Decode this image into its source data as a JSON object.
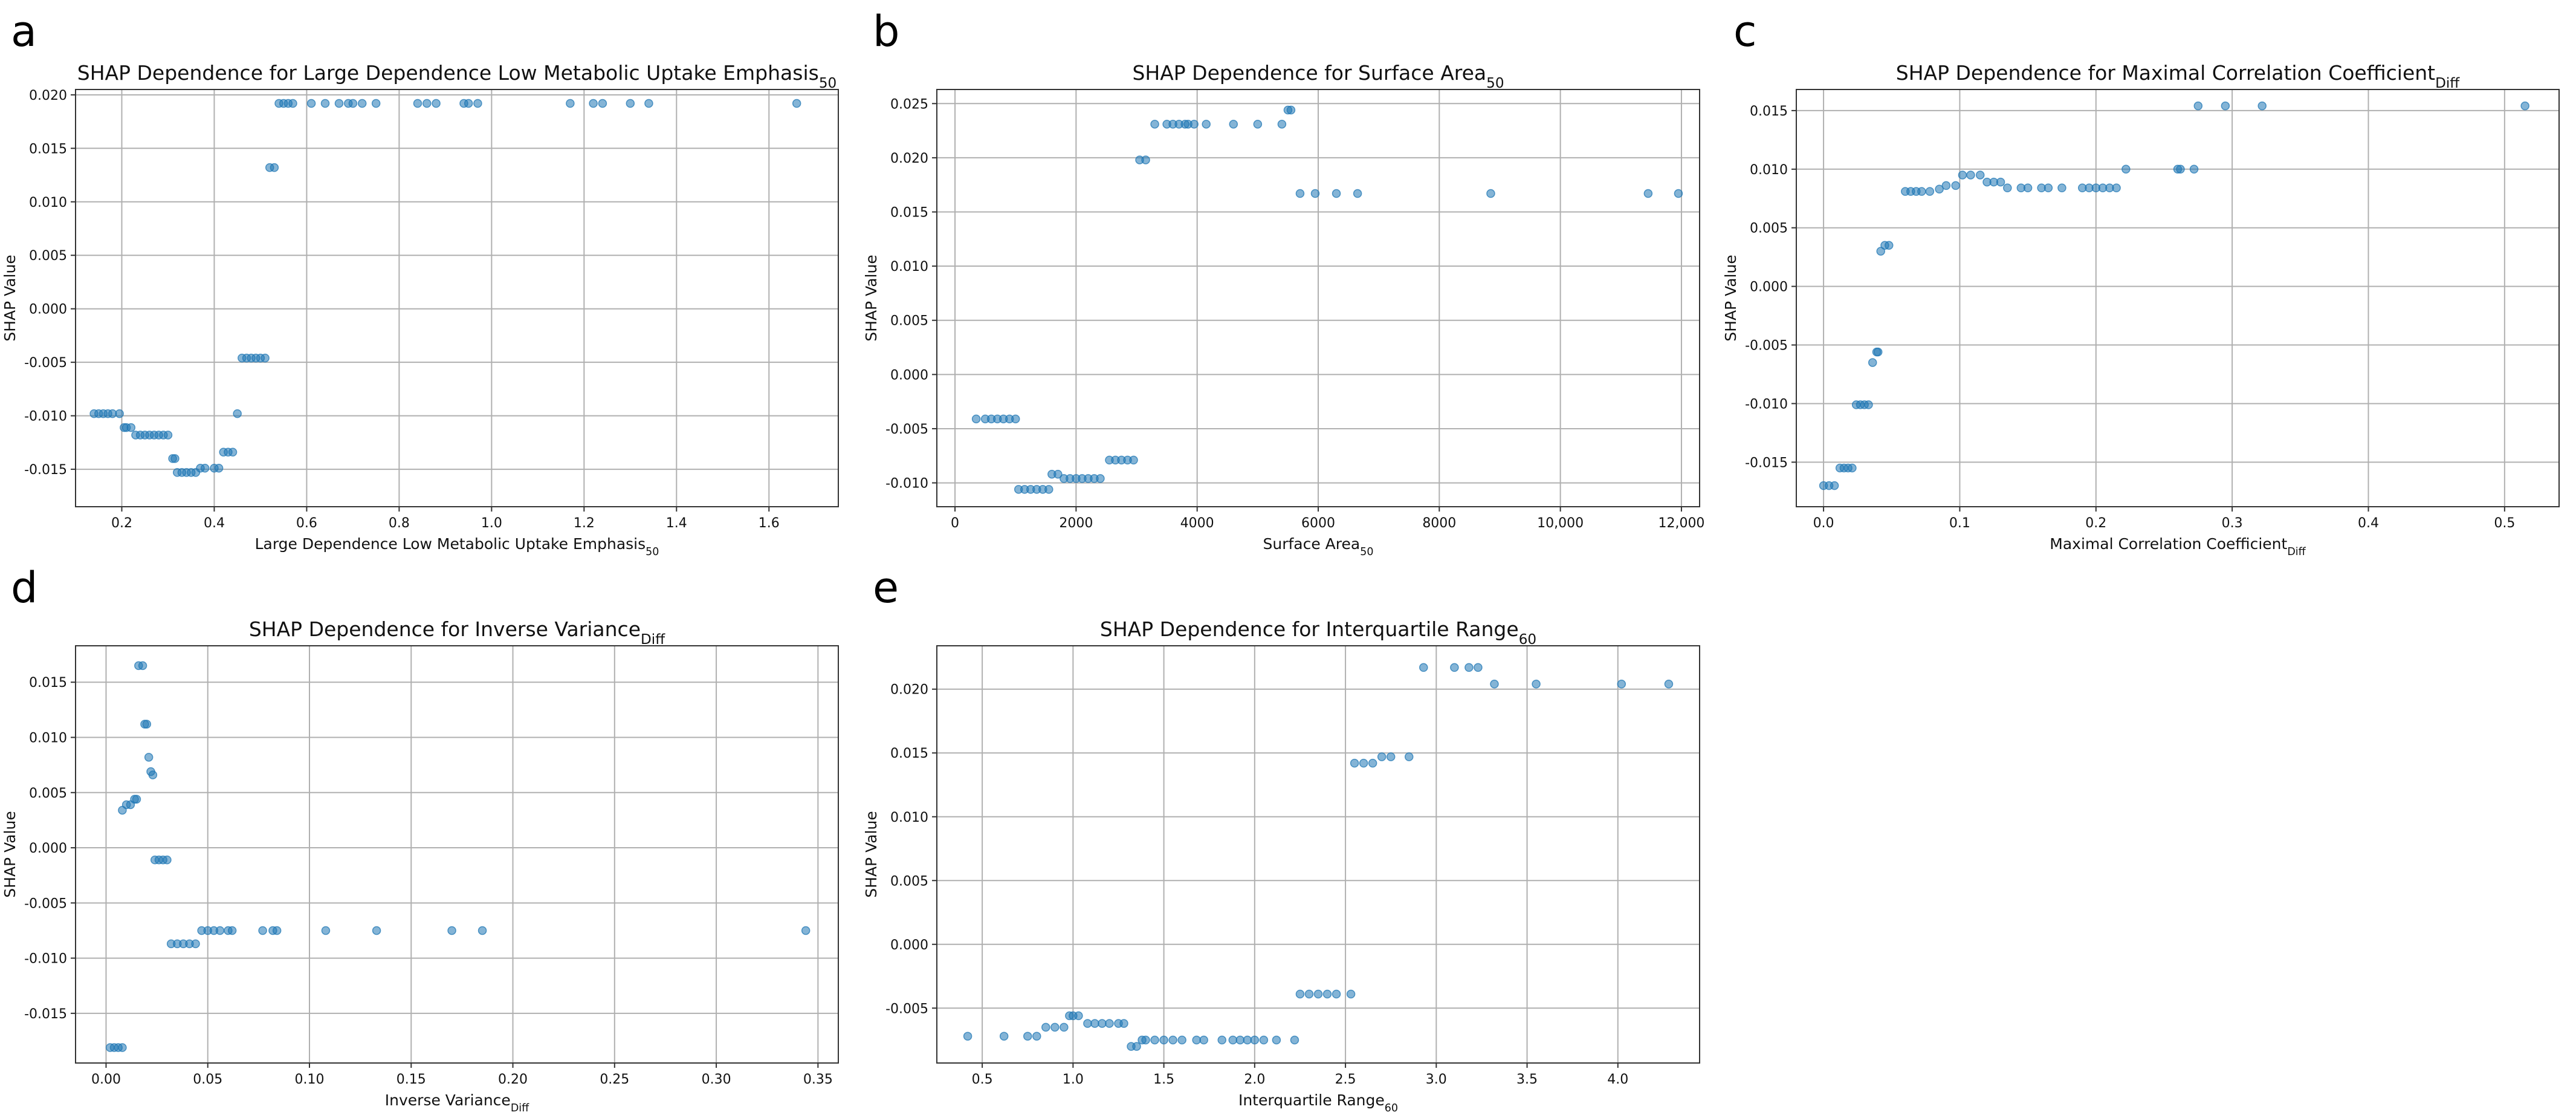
{
  "chart_data": [
    {
      "type": "scatter",
      "panel_letter": "a",
      "title": "SHAP Dependence for Large Dependence Low Metabolic Uptake Emphasis",
      "title_sub": "50",
      "xlabel": "Large Dependence Low Metabolic Uptake Emphasis",
      "xlabel_sub": "50",
      "ylabel": "SHAP Value",
      "xlim": [
        0.1,
        1.75
      ],
      "ylim": [
        -0.0185,
        0.0205
      ],
      "xticks": [
        0.2,
        0.4,
        0.6,
        0.8,
        1.0,
        1.2,
        1.4,
        1.6
      ],
      "xtick_labels": [
        "0.2",
        "0.4",
        "0.6",
        "0.8",
        "1.0",
        "1.2",
        "1.4",
        "1.6"
      ],
      "yticks": [
        -0.015,
        -0.01,
        -0.005,
        0.0,
        0.005,
        0.01,
        0.015,
        0.02
      ],
      "ytick_labels": [
        "-0.015",
        "-0.010",
        "-0.005",
        "0.000",
        "0.005",
        "0.010",
        "0.015",
        "0.020"
      ],
      "grid": true,
      "x": [
        0.14,
        0.15,
        0.16,
        0.17,
        0.18,
        0.195,
        0.205,
        0.21,
        0.22,
        0.23,
        0.24,
        0.25,
        0.26,
        0.27,
        0.28,
        0.29,
        0.3,
        0.31,
        0.315,
        0.32,
        0.33,
        0.34,
        0.35,
        0.36,
        0.37,
        0.38,
        0.4,
        0.41,
        0.42,
        0.43,
        0.44,
        0.45,
        0.46,
        0.47,
        0.48,
        0.49,
        0.5,
        0.51,
        0.52,
        0.53,
        0.54,
        0.55,
        0.56,
        0.57,
        0.61,
        0.64,
        0.67,
        0.69,
        0.7,
        0.72,
        0.75,
        0.84,
        0.86,
        0.88,
        0.94,
        0.95,
        0.97,
        1.17,
        1.22,
        1.24,
        1.3,
        1.34,
        1.66
      ],
      "y": [
        -0.0098,
        -0.0098,
        -0.0098,
        -0.0098,
        -0.0098,
        -0.0098,
        -0.0111,
        -0.0111,
        -0.0111,
        -0.0118,
        -0.0118,
        -0.0118,
        -0.0118,
        -0.0118,
        -0.0118,
        -0.0118,
        -0.0118,
        -0.014,
        -0.014,
        -0.0153,
        -0.0153,
        -0.0153,
        -0.0153,
        -0.0153,
        -0.0149,
        -0.0149,
        -0.0149,
        -0.0149,
        -0.0134,
        -0.0134,
        -0.0134,
        -0.0098,
        -0.0046,
        -0.0046,
        -0.0046,
        -0.0046,
        -0.0046,
        -0.0046,
        0.0132,
        0.0132,
        0.0192,
        0.0192,
        0.0192,
        0.0192,
        0.0192,
        0.0192,
        0.0192,
        0.0192,
        0.0192,
        0.0192,
        0.0192,
        0.0192,
        0.0192,
        0.0192,
        0.0192,
        0.0192,
        0.0192,
        0.0192,
        0.0192,
        0.0192,
        0.0192,
        0.0192,
        0.0192
      ]
    },
    {
      "type": "scatter",
      "panel_letter": "b",
      "title": "SHAP Dependence for Surface Area",
      "title_sub": "50",
      "xlabel": "Surface Area",
      "xlabel_sub": "50",
      "ylabel": "SHAP Value",
      "xlim": [
        -300,
        12300
      ],
      "ylim": [
        -0.0122,
        0.0263
      ],
      "xticks": [
        0,
        2000,
        4000,
        6000,
        8000,
        10000,
        12000
      ],
      "xtick_labels": [
        "0",
        "2000",
        "4000",
        "6000",
        "8000",
        "10,000",
        "12,000"
      ],
      "yticks": [
        -0.01,
        -0.005,
        0.0,
        0.005,
        0.01,
        0.015,
        0.02,
        0.025
      ],
      "ytick_labels": [
        "-0.010",
        "-0.005",
        "0.000",
        "0.005",
        "0.010",
        "0.015",
        "0.020",
        "0.025"
      ],
      "grid": true,
      "x": [
        350,
        500,
        600,
        700,
        800,
        900,
        1000,
        1050,
        1150,
        1250,
        1350,
        1450,
        1550,
        1600,
        1700,
        1800,
        1900,
        2000,
        2100,
        2200,
        2300,
        2400,
        2550,
        2650,
        2750,
        2850,
        2950,
        3050,
        3150,
        3300,
        3500,
        3600,
        3700,
        3800,
        3850,
        3950,
        4150,
        4600,
        5000,
        5400,
        5500,
        5550,
        5700,
        5950,
        6300,
        6650,
        8850,
        11450,
        11950
      ],
      "y": [
        -0.0041,
        -0.0041,
        -0.0041,
        -0.0041,
        -0.0041,
        -0.0041,
        -0.0041,
        -0.0106,
        -0.0106,
        -0.0106,
        -0.0106,
        -0.0106,
        -0.0106,
        -0.0092,
        -0.0092,
        -0.0096,
        -0.0096,
        -0.0096,
        -0.0096,
        -0.0096,
        -0.0096,
        -0.0096,
        -0.0079,
        -0.0079,
        -0.0079,
        -0.0079,
        -0.0079,
        0.0198,
        0.0198,
        0.0231,
        0.0231,
        0.0231,
        0.0231,
        0.0231,
        0.0231,
        0.0231,
        0.0231,
        0.0231,
        0.0231,
        0.0231,
        0.0244,
        0.0244,
        0.0167,
        0.0167,
        0.0167,
        0.0167,
        0.0167,
        0.0167,
        0.0167
      ]
    },
    {
      "type": "scatter",
      "panel_letter": "c",
      "title": "SHAP Dependence for Maximal Correlation Coefficient",
      "title_sub": "Diff",
      "xlabel": "Maximal Correlation Coefficient",
      "xlabel_sub": "Diff",
      "ylabel": "SHAP Value",
      "xlim": [
        -0.02,
        0.54
      ],
      "ylim": [
        -0.0188,
        0.0168
      ],
      "xticks": [
        0.0,
        0.1,
        0.2,
        0.3,
        0.4,
        0.5
      ],
      "xtick_labels": [
        "0.0",
        "0.1",
        "0.2",
        "0.3",
        "0.4",
        "0.5"
      ],
      "yticks": [
        -0.015,
        -0.01,
        -0.005,
        0.0,
        0.005,
        0.01,
        0.015
      ],
      "ytick_labels": [
        "-0.015",
        "-0.010",
        "-0.005",
        "0.000",
        "0.005",
        "0.010",
        "0.015"
      ],
      "grid": true,
      "x": [
        0.0,
        0.004,
        0.008,
        0.012,
        0.015,
        0.018,
        0.021,
        0.024,
        0.027,
        0.03,
        0.033,
        0.036,
        0.039,
        0.04,
        0.042,
        0.045,
        0.048,
        0.06,
        0.064,
        0.068,
        0.072,
        0.078,
        0.085,
        0.09,
        0.097,
        0.102,
        0.108,
        0.115,
        0.12,
        0.125,
        0.13,
        0.135,
        0.145,
        0.15,
        0.16,
        0.165,
        0.175,
        0.19,
        0.195,
        0.2,
        0.205,
        0.21,
        0.215,
        0.222,
        0.26,
        0.262,
        0.272,
        0.275,
        0.295,
        0.322,
        0.515
      ],
      "y": [
        -0.017,
        -0.017,
        -0.017,
        -0.0155,
        -0.0155,
        -0.0155,
        -0.0155,
        -0.0101,
        -0.0101,
        -0.0101,
        -0.0101,
        -0.0065,
        -0.0056,
        -0.0056,
        0.003,
        0.0035,
        0.0035,
        0.0081,
        0.0081,
        0.0081,
        0.0081,
        0.0081,
        0.0083,
        0.0086,
        0.0086,
        0.0095,
        0.0095,
        0.0095,
        0.0089,
        0.0089,
        0.0089,
        0.0084,
        0.0084,
        0.0084,
        0.0084,
        0.0084,
        0.0084,
        0.0084,
        0.0084,
        0.0084,
        0.0084,
        0.0084,
        0.0084,
        0.01,
        0.01,
        0.01,
        0.01,
        0.0154,
        0.0154,
        0.0154,
        0.0154
      ]
    },
    {
      "type": "scatter",
      "panel_letter": "d",
      "title": "SHAP Dependence for Inverse Variance",
      "title_sub": "Diff",
      "xlabel": "Inverse Variance",
      "xlabel_sub": "Diff",
      "ylabel": "SHAP Value",
      "xlim": [
        -0.015,
        0.36
      ],
      "ylim": [
        -0.0195,
        0.0183
      ],
      "xticks": [
        0.0,
        0.05,
        0.1,
        0.15,
        0.2,
        0.25,
        0.3,
        0.35
      ],
      "xtick_labels": [
        "0.00",
        "0.05",
        "0.10",
        "0.15",
        "0.20",
        "0.25",
        "0.30",
        "0.35"
      ],
      "yticks": [
        -0.015,
        -0.01,
        -0.005,
        0.0,
        0.005,
        0.01,
        0.015
      ],
      "ytick_labels": [
        "-0.015",
        "-0.010",
        "-0.005",
        "0.000",
        "0.005",
        "0.010",
        "0.015"
      ],
      "grid": true,
      "x": [
        0.002,
        0.004,
        0.006,
        0.008,
        0.008,
        0.01,
        0.012,
        0.014,
        0.015,
        0.016,
        0.018,
        0.019,
        0.02,
        0.021,
        0.022,
        0.023,
        0.024,
        0.026,
        0.028,
        0.03,
        0.032,
        0.035,
        0.038,
        0.041,
        0.044,
        0.047,
        0.05,
        0.053,
        0.056,
        0.06,
        0.062,
        0.077,
        0.082,
        0.084,
        0.108,
        0.133,
        0.17,
        0.185,
        0.344
      ],
      "y": [
        -0.0181,
        -0.0181,
        -0.0181,
        -0.0181,
        0.0034,
        0.0039,
        0.0039,
        0.0044,
        0.0044,
        0.0165,
        0.0165,
        0.0112,
        0.0112,
        0.0082,
        0.0069,
        0.0066,
        -0.0011,
        -0.0011,
        -0.0011,
        -0.0011,
        -0.0087,
        -0.0087,
        -0.0087,
        -0.0087,
        -0.0087,
        -0.0075,
        -0.0075,
        -0.0075,
        -0.0075,
        -0.0075,
        -0.0075,
        -0.0075,
        -0.0075,
        -0.0075,
        -0.0075,
        -0.0075,
        -0.0075,
        -0.0075,
        -0.0075
      ]
    },
    {
      "type": "scatter",
      "panel_letter": "e",
      "title": "SHAP Dependence for Interquartile Range",
      "title_sub": "60",
      "xlabel": "Interquartile Range",
      "xlabel_sub": "60",
      "ylabel": "SHAP Value",
      "xlim": [
        0.25,
        4.45
      ],
      "ylim": [
        -0.0093,
        0.0234
      ],
      "xticks": [
        0.5,
        1.0,
        1.5,
        2.0,
        2.5,
        3.0,
        3.5,
        4.0
      ],
      "xtick_labels": [
        "0.5",
        "1.0",
        "1.5",
        "2.0",
        "2.5",
        "3.0",
        "3.5",
        "4.0"
      ],
      "yticks": [
        -0.005,
        0.0,
        0.005,
        0.01,
        0.015,
        0.02
      ],
      "ytick_labels": [
        "-0.005",
        "0.000",
        "0.005",
        "0.010",
        "0.015",
        "0.020"
      ],
      "grid": true,
      "x": [
        0.42,
        0.62,
        0.75,
        0.8,
        0.85,
        0.9,
        0.95,
        0.98,
        1.0,
        1.03,
        1.08,
        1.12,
        1.16,
        1.2,
        1.25,
        1.28,
        1.32,
        1.35,
        1.38,
        1.4,
        1.45,
        1.5,
        1.55,
        1.6,
        1.68,
        1.72,
        1.82,
        1.88,
        1.92,
        1.96,
        2.0,
        2.05,
        2.12,
        2.22,
        2.25,
        2.3,
        2.35,
        2.4,
        2.45,
        2.53,
        2.55,
        2.6,
        2.65,
        2.7,
        2.75,
        2.85,
        2.93,
        3.1,
        3.18,
        3.23,
        3.32,
        3.55,
        4.02,
        4.28
      ],
      "y": [
        -0.0072,
        -0.0072,
        -0.0072,
        -0.0072,
        -0.0065,
        -0.0065,
        -0.0065,
        -0.0056,
        -0.0056,
        -0.0056,
        -0.0062,
        -0.0062,
        -0.0062,
        -0.0062,
        -0.0062,
        -0.0062,
        -0.008,
        -0.008,
        -0.0075,
        -0.0075,
        -0.0075,
        -0.0075,
        -0.0075,
        -0.0075,
        -0.0075,
        -0.0075,
        -0.0075,
        -0.0075,
        -0.0075,
        -0.0075,
        -0.0075,
        -0.0075,
        -0.0075,
        -0.0075,
        -0.0039,
        -0.0039,
        -0.0039,
        -0.0039,
        -0.0039,
        -0.0039,
        0.0142,
        0.0142,
        0.0142,
        0.0147,
        0.0147,
        0.0147,
        0.0217,
        0.0217,
        0.0217,
        0.0217,
        0.0204,
        0.0204,
        0.0204,
        0.0204
      ]
    }
  ]
}
